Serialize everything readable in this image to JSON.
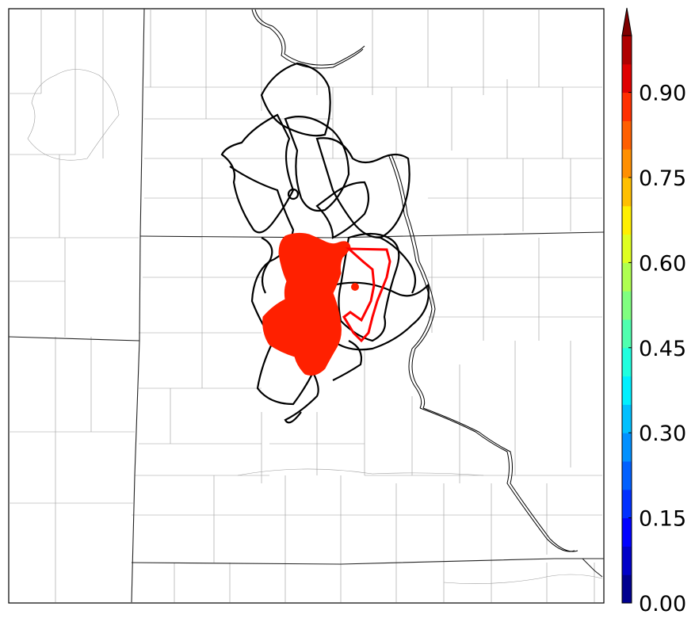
{
  "map": {
    "region": "US central plains county map",
    "features": {
      "county_lines": "light gray",
      "state_lines": "dark",
      "rivers": "double black lines",
      "probability_fill": "red",
      "ensemble_contours": "black",
      "observed_outline": "red"
    },
    "fill_color": "#ff2000",
    "outline_color": "#ff0000",
    "contour_color": "#000000"
  },
  "colorbar": {
    "ticks": [
      "0.00",
      "0.15",
      "0.30",
      "0.45",
      "0.60",
      "0.75",
      "0.90"
    ],
    "extend": "max",
    "levels": [
      0,
      0.05,
      0.1,
      0.15,
      0.2,
      0.25,
      0.3,
      0.35,
      0.4,
      0.45,
      0.5,
      0.55,
      0.6,
      0.65,
      0.7,
      0.75,
      0.8,
      0.85,
      0.9,
      0.95,
      1.0
    ],
    "colors": [
      "#00008f",
      "#0000c8",
      "#0000ff",
      "#0030ff",
      "#0060ff",
      "#0090ff",
      "#00c0ff",
      "#00f0ff",
      "#20ffdf",
      "#50ffaf",
      "#80ff80",
      "#afff50",
      "#dfff20",
      "#ffef00",
      "#ffbf00",
      "#ff8f00",
      "#ff5f00",
      "#ff2f00",
      "#df0000",
      "#af0000"
    ],
    "extend_color": "#800000"
  }
}
